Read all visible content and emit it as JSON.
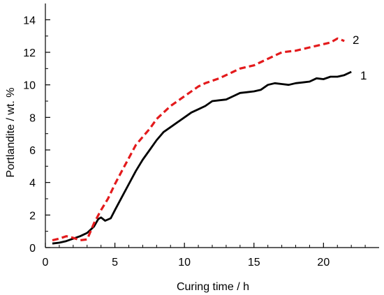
{
  "chart_data": {
    "type": "line",
    "title": "",
    "xlabel": "Curing time / h",
    "ylabel": "Portlandite / wt. %",
    "xlim": [
      0,
      24
    ],
    "ylim": [
      0,
      15
    ],
    "xticks": [
      0,
      5,
      10,
      15,
      20
    ],
    "yticks": [
      0,
      2,
      4,
      6,
      8,
      10,
      12,
      14
    ],
    "grid": false,
    "legend": "none",
    "series": [
      {
        "name": "1",
        "color": "#000000",
        "style": "solid",
        "x": [
          0.5,
          1,
          1.5,
          2,
          2.5,
          3,
          3.5,
          3.8,
          4.0,
          4.3,
          4.7,
          5.0,
          5.5,
          6,
          6.5,
          7,
          7.5,
          8,
          8.5,
          9,
          9.5,
          10,
          10.5,
          11,
          11.5,
          12,
          12.5,
          13,
          13.5,
          14,
          14.5,
          15,
          15.5,
          16,
          16.5,
          17,
          17.5,
          18,
          18.5,
          19,
          19.5,
          20,
          20.5,
          21,
          21.5,
          22
        ],
        "y": [
          0.25,
          0.3,
          0.4,
          0.55,
          0.7,
          0.9,
          1.3,
          1.75,
          1.85,
          1.65,
          1.8,
          2.3,
          3.1,
          3.9,
          4.7,
          5.4,
          6.0,
          6.6,
          7.1,
          7.4,
          7.7,
          8.0,
          8.3,
          8.5,
          8.7,
          9.0,
          9.05,
          9.1,
          9.3,
          9.5,
          9.55,
          9.6,
          9.7,
          10.0,
          10.1,
          10.05,
          10.0,
          10.1,
          10.15,
          10.2,
          10.4,
          10.35,
          10.5,
          10.5,
          10.6,
          10.8
        ]
      },
      {
        "name": "2",
        "color": "#e31a1c",
        "style": "dashed",
        "x": [
          0.5,
          1,
          1.5,
          2,
          2.5,
          3,
          3.5,
          4,
          4.5,
          5,
          5.5,
          6,
          6.5,
          7,
          7.5,
          8,
          8.5,
          9,
          9.5,
          10,
          10.5,
          11,
          11.5,
          12,
          12.5,
          13,
          13.5,
          14,
          14.5,
          15,
          15.5,
          16,
          16.5,
          17,
          17.5,
          18,
          18.5,
          19,
          19.5,
          20,
          20.5,
          21,
          21.5
        ],
        "y": [
          0.45,
          0.55,
          0.7,
          0.6,
          0.45,
          0.5,
          1.5,
          2.3,
          3.0,
          3.9,
          4.7,
          5.5,
          6.3,
          6.8,
          7.3,
          7.9,
          8.3,
          8.7,
          9.0,
          9.3,
          9.6,
          9.9,
          10.1,
          10.25,
          10.4,
          10.6,
          10.8,
          11.0,
          11.1,
          11.2,
          11.4,
          11.6,
          11.8,
          12.0,
          12.05,
          12.1,
          12.2,
          12.3,
          12.4,
          12.5,
          12.6,
          12.85,
          12.7
        ]
      }
    ]
  }
}
